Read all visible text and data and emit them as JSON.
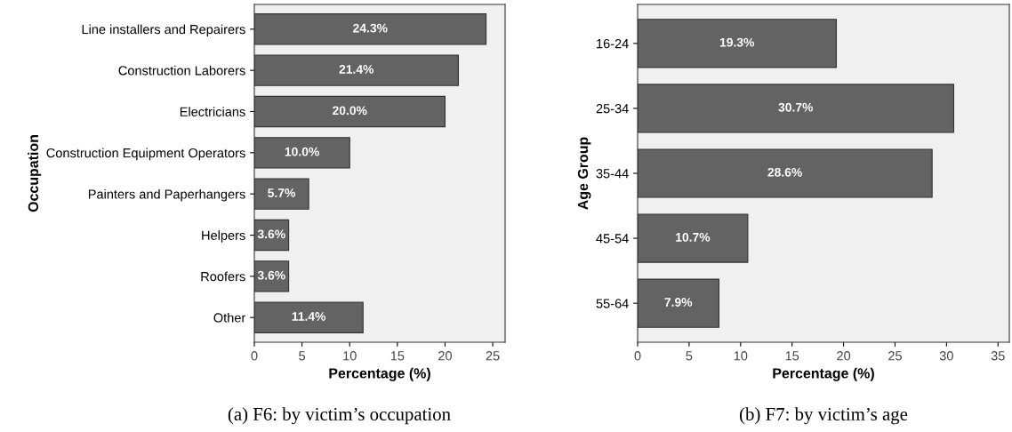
{
  "chart_data": [
    {
      "type": "bar",
      "orientation": "horizontal",
      "title": "(a) F6: by victim’s occupation",
      "xlabel": "Percentage (%)",
      "ylabel": "Occupation",
      "categories": [
        "Line installers and Repairers",
        "Construction Laborers",
        "Electricians",
        "Construction Equipment Operators",
        "Painters and Paperhangers",
        "Helpers",
        "Roofers",
        "Other"
      ],
      "values": [
        24.3,
        21.4,
        20.0,
        10.0,
        5.7,
        3.6,
        3.6,
        11.4
      ],
      "value_labels": [
        "24.3%",
        "21.4%",
        "20.0%",
        "10.0%",
        "5.7%",
        "3.6%",
        "3.6%",
        "11.4%"
      ],
      "color": "#636363",
      "xlim": [
        0,
        26.3
      ],
      "xticks": [
        0,
        5,
        10,
        15,
        20,
        25
      ],
      "grid": false
    },
    {
      "type": "bar",
      "orientation": "horizontal",
      "title": "(b) F7: by victim’s age",
      "xlabel": "Percentage (%)",
      "ylabel": "Age Group",
      "categories": [
        "16-24",
        "25-34",
        "35-44",
        "45-54",
        "55-64"
      ],
      "values": [
        19.3,
        30.7,
        28.6,
        10.7,
        7.9
      ],
      "value_labels": [
        "19.3%",
        "30.7%",
        "28.6%",
        "10.7%",
        "7.9%"
      ],
      "color": "#636363",
      "xlim": [
        0,
        36.1
      ],
      "xticks": [
        0,
        5,
        10,
        15,
        20,
        25,
        30,
        35
      ],
      "grid": false
    }
  ]
}
